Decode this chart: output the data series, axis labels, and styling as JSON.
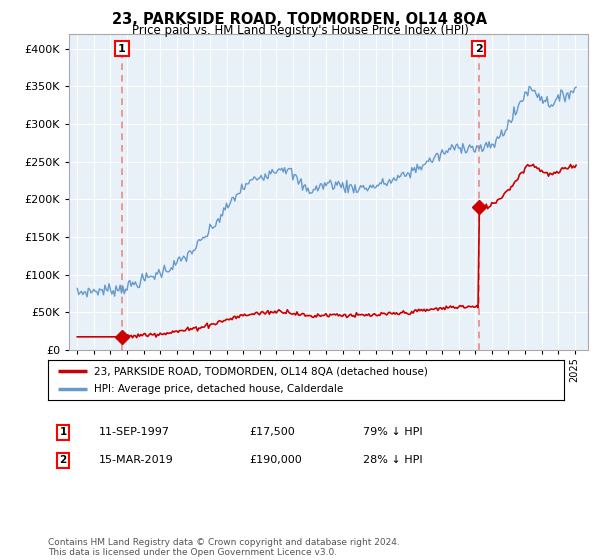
{
  "title": "23, PARKSIDE ROAD, TODMORDEN, OL14 8QA",
  "subtitle": "Price paid vs. HM Land Registry's House Price Index (HPI)",
  "legend_line1": "23, PARKSIDE ROAD, TODMORDEN, OL14 8QA (detached house)",
  "legend_line2": "HPI: Average price, detached house, Calderdale",
  "annotation1_label": "1",
  "annotation1_date": "11-SEP-1997",
  "annotation1_price": "£17,500",
  "annotation1_hpi": "79% ↓ HPI",
  "annotation2_label": "2",
  "annotation2_date": "15-MAR-2019",
  "annotation2_price": "£190,000",
  "annotation2_hpi": "28% ↓ HPI",
  "footnote": "Contains HM Land Registry data © Crown copyright and database right 2024.\nThis data is licensed under the Open Government Licence v3.0.",
  "sale1_x": 1997.7,
  "sale1_y": 17500,
  "sale2_x": 2019.2,
  "sale2_y": 190000,
  "hpi_color": "#6699cc",
  "price_color": "#cc0000",
  "vline_color": "#ee8888",
  "marker_color": "#cc0000",
  "background_color": "#ffffff",
  "plot_bg_color": "#e8f0f8",
  "grid_color": "#ffffff",
  "ylim": [
    0,
    420000
  ],
  "xlim": [
    1994.5,
    2025.8
  ],
  "yticks": [
    0,
    50000,
    100000,
    150000,
    200000,
    250000,
    300000,
    350000,
    400000
  ]
}
